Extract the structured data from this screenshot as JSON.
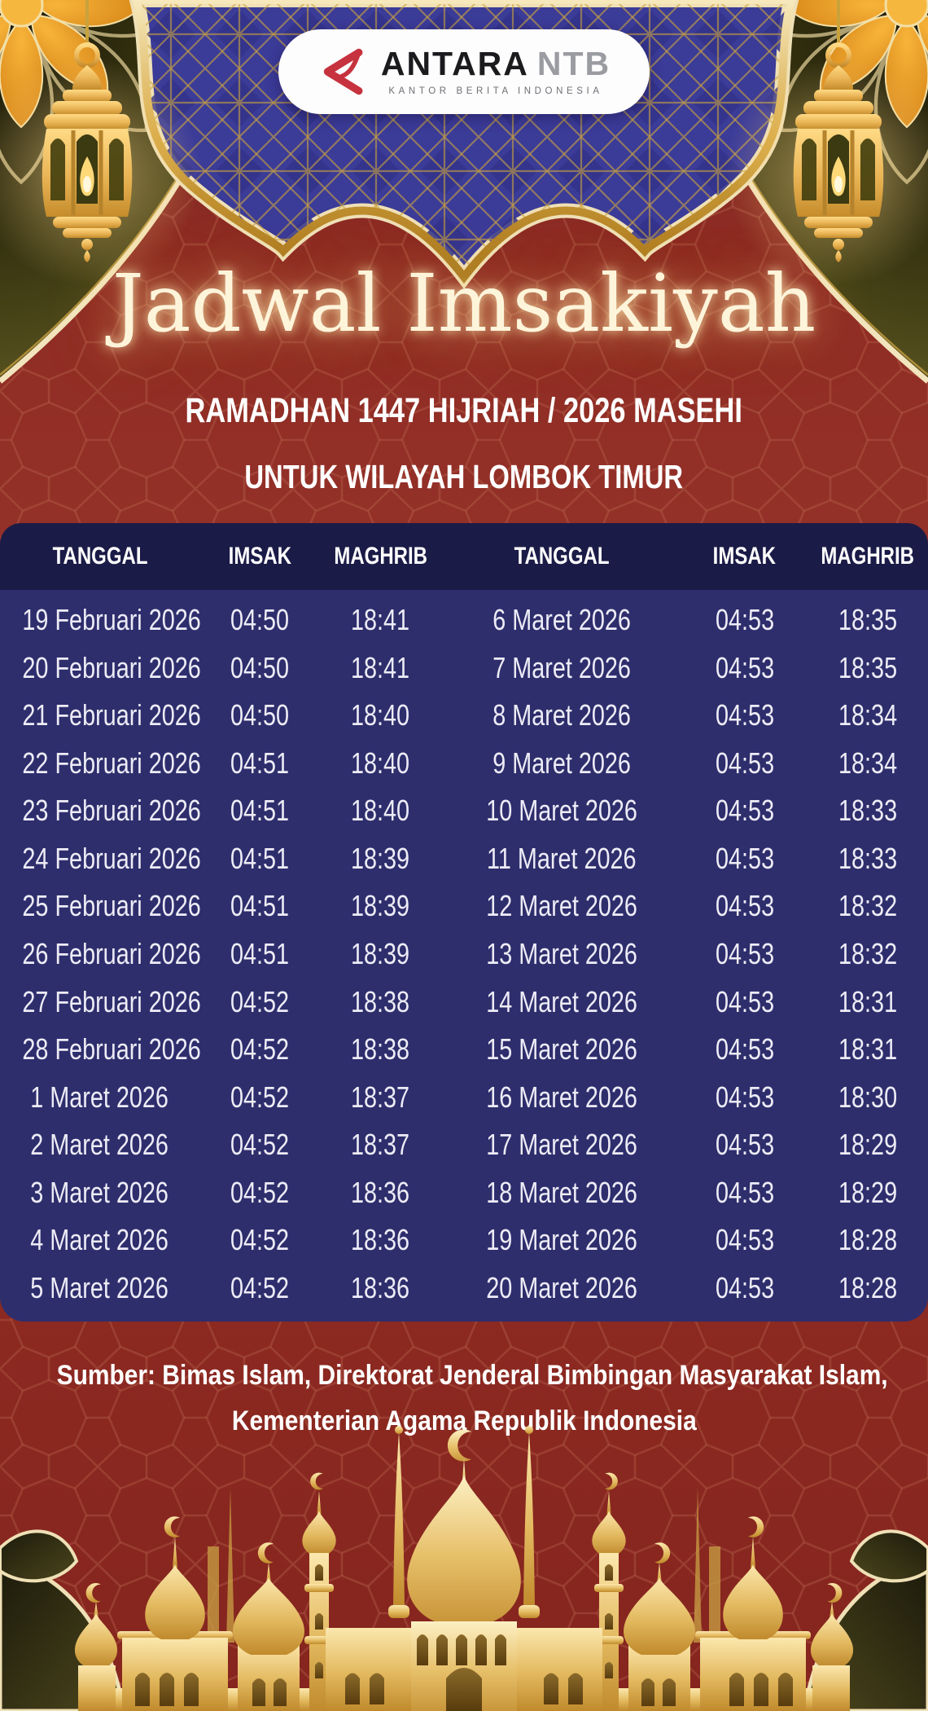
{
  "logo": {
    "brand": "ANTARA",
    "brand_suffix": "NTB",
    "tagline": "KANTOR BERITA INDONESIA"
  },
  "header": {
    "title": "Jadwal Imsakiyah",
    "subtitle1": "RAMADHAN 1447 HIJRIAH / 2026 MASEHI",
    "subtitle2": "UNTUK WILAYAH LOMBOK TIMUR"
  },
  "table": {
    "columns": [
      "TANGGAL",
      "IMSAK",
      "MAGHRIB",
      "TANGGAL",
      "IMSAK",
      "MAGHRIB"
    ],
    "rows": [
      [
        "19 Februari 2026",
        "04:50",
        "18:41",
        "6 Maret 2026",
        "04:53",
        "18:35"
      ],
      [
        "20 Februari 2026",
        "04:50",
        "18:41",
        "7 Maret 2026",
        "04:53",
        "18:35"
      ],
      [
        "21 Februari 2026",
        "04:50",
        "18:40",
        "8 Maret 2026",
        "04:53",
        "18:34"
      ],
      [
        "22 Februari 2026",
        "04:51",
        "18:40",
        "9 Maret 2026",
        "04:53",
        "18:34"
      ],
      [
        "23 Februari 2026",
        "04:51",
        "18:40",
        "10 Maret 2026",
        "04:53",
        "18:33"
      ],
      [
        "24 Februari 2026",
        "04:51",
        "18:39",
        "11 Maret 2026",
        "04:53",
        "18:33"
      ],
      [
        "25 Februari 2026",
        "04:51",
        "18:39",
        "12 Maret 2026",
        "04:53",
        "18:32"
      ],
      [
        "26 Februari 2026",
        "04:51",
        "18:39",
        "13 Maret 2026",
        "04:53",
        "18:32"
      ],
      [
        "27 Februari 2026",
        "04:52",
        "18:38",
        "14 Maret 2026",
        "04:53",
        "18:31"
      ],
      [
        "28 Februari 2026",
        "04:52",
        "18:38",
        "15 Maret 2026",
        "04:53",
        "18:31"
      ],
      [
        "1 Maret 2026",
        "04:52",
        "18:37",
        "16 Maret 2026",
        "04:53",
        "18:30"
      ],
      [
        "2 Maret 2026",
        "04:52",
        "18:37",
        "17 Maret 2026",
        "04:53",
        "18:29"
      ],
      [
        "3 Maret 2026",
        "04:52",
        "18:36",
        "18 Maret 2026",
        "04:53",
        "18:29"
      ],
      [
        "4 Maret 2026",
        "04:52",
        "18:36",
        "19 Maret 2026",
        "04:53",
        "18:28"
      ],
      [
        "5 Maret 2026",
        "04:52",
        "18:36",
        "20 Maret 2026",
        "04:53",
        "18:28"
      ]
    ]
  },
  "footer": {
    "source_line1": "Sumber: Bimas Islam, Direktorat Jenderal Bimbingan Masyarakat Islam,",
    "source_line2": "Kementerian Agama Republik Indonesia"
  },
  "icons": {
    "logo_mark": "antara-triangle-mark",
    "decorations": [
      "lantern-icon",
      "crescent-icon",
      "mosque-silhouette",
      "flower-ornament",
      "medallion-ornament"
    ]
  },
  "colors": {
    "background_red": "#8E2B24",
    "header_navy": "#1B1B47",
    "body_indigo": "#2E2E6D",
    "medallion_blue": "#3B3B98",
    "gold": "#D9A84E",
    "cream": "#F2E4BC",
    "logo_red": "#C6323E",
    "title_cream": "#FDF4DA"
  }
}
